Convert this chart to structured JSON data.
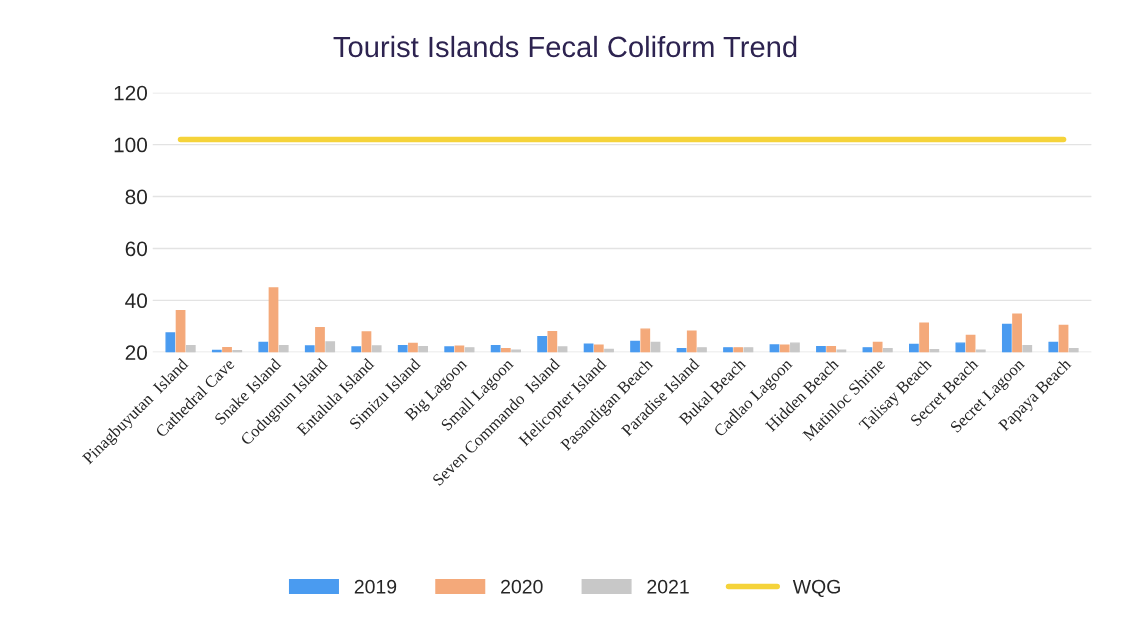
{
  "chart_data": {
    "type": "bar",
    "title": "Tourist Islands Fecal Coliform Trend",
    "categories": [
      "Pinagbuyutan  Island",
      "Cathedral Cave",
      "Snake Island",
      "Codugnun Island",
      "Entalula Island",
      "Simizu Island",
      "Big Lagoon",
      "Small Lagoon",
      "Seven Commando  Island",
      "Helicopter Island",
      "Pasandigan Beach",
      "Paradise Island",
      "Bukal Beach",
      "Cadlao Lagoon",
      "Hidden Beach",
      "Matinloc Shrine",
      "Talisay Beach",
      "Secret Beach",
      "Secret Lagoon",
      "Papaya Beach"
    ],
    "series": [
      {
        "name": "2019",
        "color": "#4a9bf0",
        "values": [
          27.4,
          20.7,
          23.8,
          22.4,
          22,
          22.5,
          22,
          22.5,
          26,
          23.1,
          24.2,
          21.4,
          21.7,
          22.8,
          22.1,
          21.7,
          23,
          23.5,
          30.7,
          23.8
        ]
      },
      {
        "name": "2020",
        "color": "#f4a97a",
        "values": [
          36,
          21.8,
          44.8,
          29.5,
          27.8,
          23.4,
          22.3,
          21.4,
          27.9,
          22.7,
          28.9,
          28.1,
          21.7,
          22.7,
          22.1,
          23.8,
          31.2,
          26.5,
          34.7,
          30.3
        ]
      },
      {
        "name": "2021",
        "color": "#c8c8c8",
        "values": [
          22.5,
          20.6,
          22.5,
          24,
          22.4,
          22.1,
          21.7,
          20.8,
          22,
          21.1,
          23.8,
          21.7,
          21.7,
          23.5,
          20.8,
          21.4,
          21,
          20.8,
          22.5,
          21.4
        ]
      },
      {
        "name": "WQG",
        "type": "line",
        "color": "#f5d33a",
        "values": [
          102,
          102,
          102,
          102,
          102,
          102,
          102,
          102,
          102,
          102,
          102,
          102,
          102,
          102,
          102,
          102,
          102,
          102,
          102,
          102
        ]
      }
    ],
    "ylim": [
      20,
      120
    ],
    "yticks": [
      20,
      40,
      60,
      80,
      100,
      120
    ],
    "grid": "y",
    "legend": "bottom"
  }
}
